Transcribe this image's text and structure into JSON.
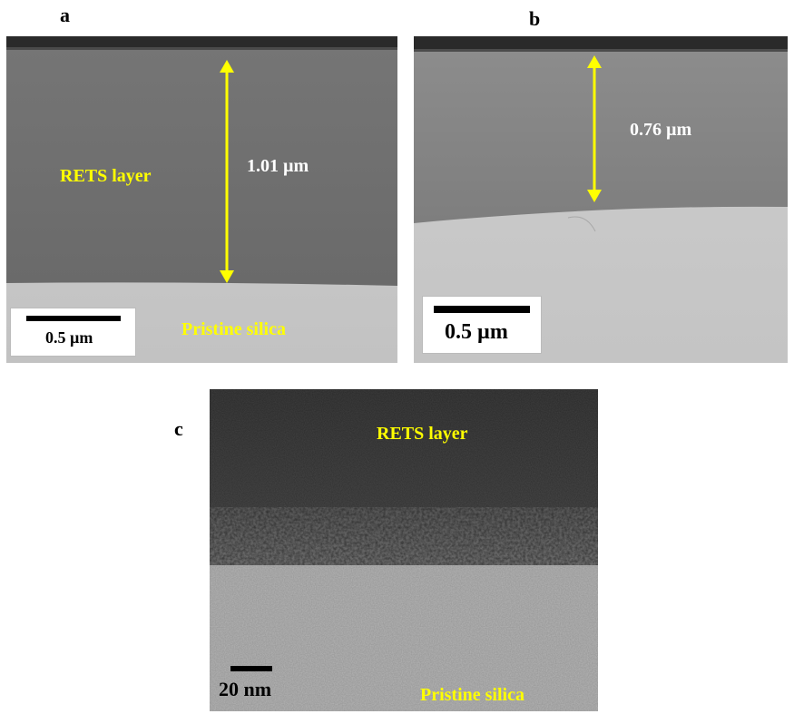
{
  "panels": {
    "a": {
      "letter": "a",
      "layer_label": "RETS layer",
      "thickness_label": "1.01 µm",
      "substrate_label": "Pristine silica",
      "scale_label": "0.5 µm"
    },
    "b": {
      "letter": "b",
      "thickness_label": "0.76 µm",
      "scale_label": "0.5 µm"
    },
    "c": {
      "letter": "c",
      "layer_label": "RETS layer",
      "substrate_label": "Pristine silica",
      "scale_label": "20 nm"
    }
  },
  "colors": {
    "annotation": "#ffff00",
    "layer_gray": "#6f6f6f",
    "substrate_gray": "#c8c8c8"
  }
}
